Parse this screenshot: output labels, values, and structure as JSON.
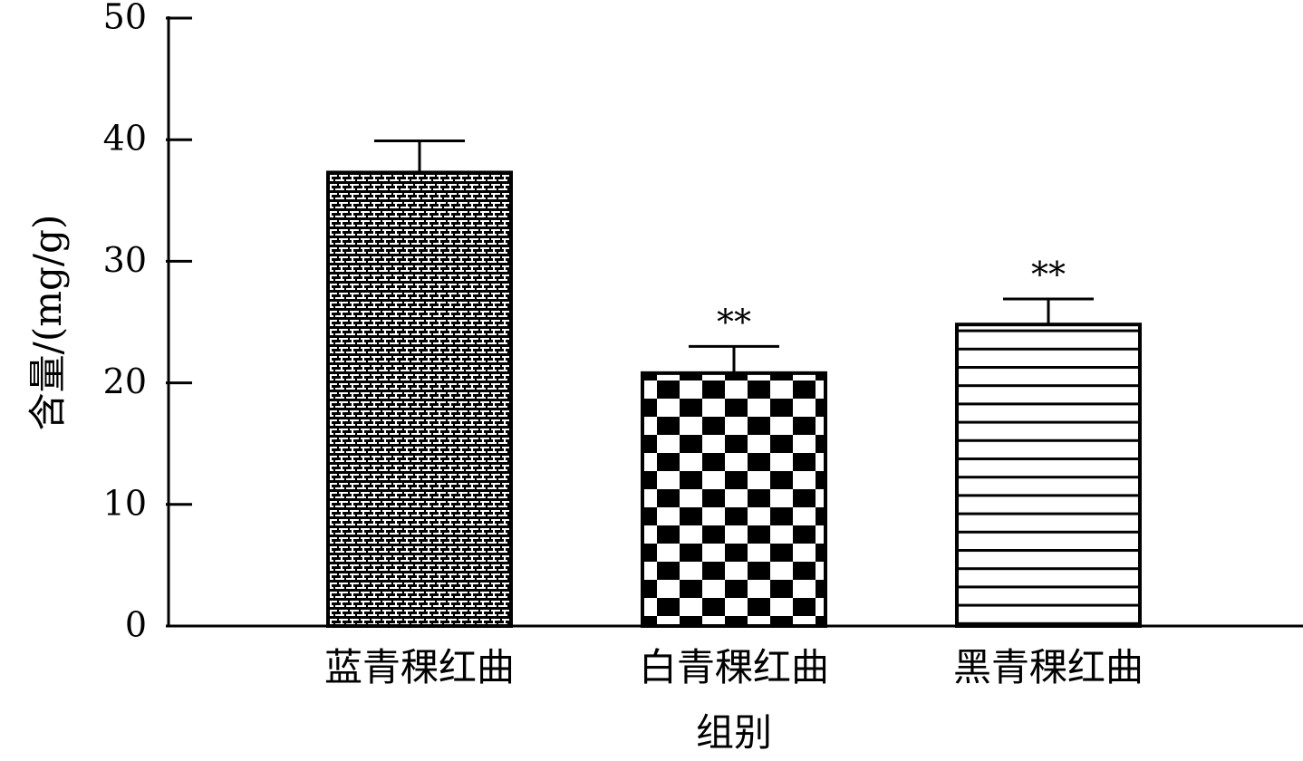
{
  "chart_data": {
    "type": "bar",
    "title": "",
    "xlabel": "组别",
    "ylabel": "含量/(mg/g)",
    "ylim": [
      0,
      50
    ],
    "yticks": [
      0,
      10,
      20,
      30,
      40,
      50
    ],
    "grid": false,
    "legend": "none",
    "categories": [
      "蓝青稞红曲",
      "白青稞红曲",
      "黑青稞红曲"
    ],
    "series": [
      {
        "values": [
          37.3,
          20.8,
          24.8
        ],
        "error": [
          2.6,
          2.2,
          2.1
        ],
        "significance": [
          "",
          "**",
          "**"
        ],
        "patterns": [
          "fine-brick",
          "checkerboard",
          "horizontal-lines"
        ]
      }
    ]
  }
}
